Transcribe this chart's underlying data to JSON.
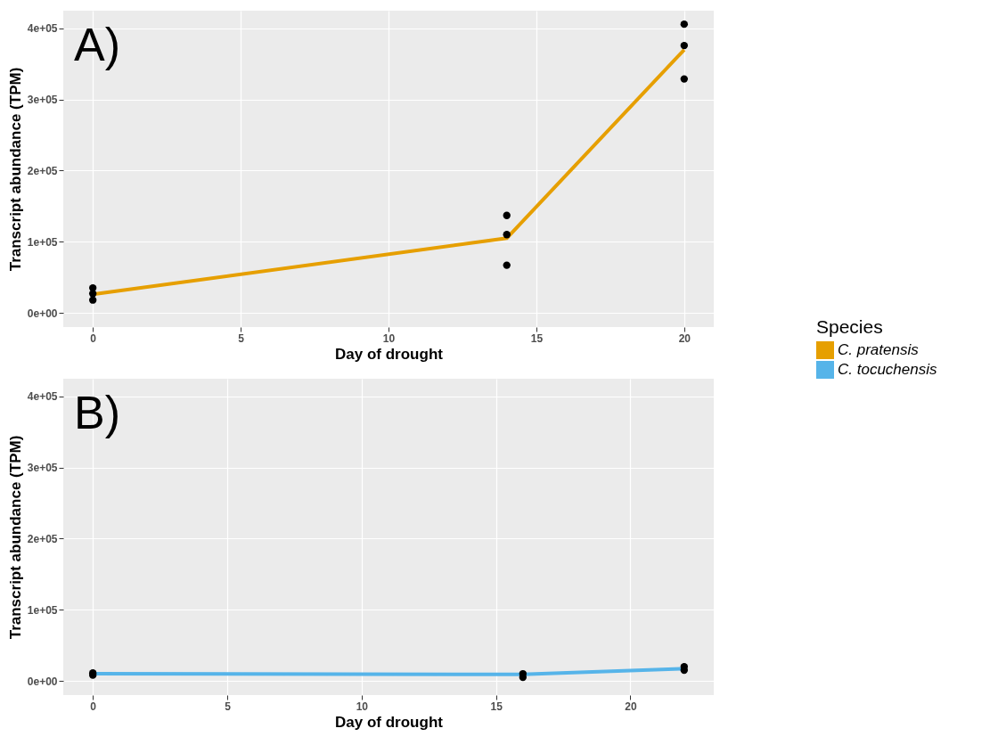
{
  "chart_data": [
    {
      "type": "line",
      "annotations": [
        "A)"
      ],
      "xlabel": "Day of drought",
      "ylabel": "Transcript abundance (TPM)",
      "legend_title": "Species",
      "legend": "right",
      "grid": true,
      "marker": "circle",
      "xlim": [
        -1,
        21
      ],
      "xticks": [
        0,
        5,
        10,
        15,
        20
      ],
      "ylim": [
        -20000,
        425000
      ],
      "yticks": [
        {
          "value": 0,
          "label": "0e+00"
        },
        {
          "value": 100000,
          "label": "1e+05"
        },
        {
          "value": 200000,
          "label": "2e+05"
        },
        {
          "value": 300000,
          "label": "3e+05"
        },
        {
          "value": 400000,
          "label": "4e+05"
        }
      ],
      "series": [
        {
          "type": "line",
          "name": "C. pratensis",
          "color": "#e69f00",
          "marker": "none",
          "x": [
            0,
            14,
            20
          ],
          "values": [
            26000,
            105000,
            370000
          ]
        },
        {
          "type": "scatter",
          "color": "#000000",
          "x": [
            0,
            0,
            0,
            14,
            14,
            14,
            20,
            20,
            20
          ],
          "values": [
            35000,
            27000,
            18000,
            137000,
            110000,
            67000,
            406000,
            376000,
            329000
          ]
        }
      ]
    },
    {
      "type": "line",
      "annotations": [
        "B)"
      ],
      "xlabel": "Day of drought",
      "ylabel": "Transcript abundance (TPM)",
      "grid": true,
      "marker": "circle",
      "xlim": [
        -1.1,
        23.1
      ],
      "xticks": [
        0,
        5,
        10,
        15,
        20
      ],
      "ylim": [
        -20000,
        425000
      ],
      "yticks": [
        {
          "value": 0,
          "label": "0e+00"
        },
        {
          "value": 100000,
          "label": "1e+05"
        },
        {
          "value": 200000,
          "label": "2e+05"
        },
        {
          "value": 300000,
          "label": "3e+05"
        },
        {
          "value": 400000,
          "label": "4e+05"
        }
      ],
      "series": [
        {
          "type": "line",
          "name": "C. tocuchensis",
          "color": "#56b4e9",
          "marker": "none",
          "x": [
            0,
            16,
            22
          ],
          "values": [
            10000,
            9000,
            17000
          ]
        },
        {
          "type": "scatter",
          "color": "#000000",
          "x": [
            0,
            0,
            16,
            16,
            22,
            22
          ],
          "values": [
            11000,
            8000,
            10000,
            5000,
            20000,
            15000
          ]
        }
      ]
    }
  ]
}
